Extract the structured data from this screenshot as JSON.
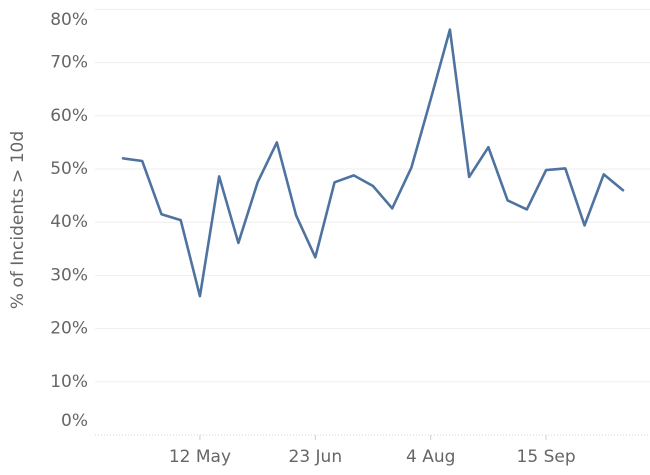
{
  "chart_data": {
    "type": "line",
    "ylabel": "% of Incidents > 10d",
    "categories": [
      null,
      null,
      null,
      null,
      "12 May",
      null,
      null,
      null,
      null,
      null,
      "23 Jun",
      null,
      null,
      null,
      null,
      null,
      "4 Aug",
      null,
      null,
      null,
      null,
      null,
      "15 Sep",
      null,
      null,
      null,
      null
    ],
    "series": [
      {
        "name": null,
        "color": "#4e73a0",
        "values": [
          52.0,
          51.5,
          41.5,
          40.4,
          26.1,
          48.6,
          36.1,
          47.5,
          55.0,
          41.3,
          33.4,
          47.5,
          48.8,
          46.8,
          42.6,
          50.3,
          63.1,
          76.2,
          48.5,
          54.1,
          44.1,
          42.4,
          49.8,
          50.1,
          39.4,
          49.0,
          46.0
        ]
      }
    ],
    "ylim": [
      0,
      80
    ],
    "yticks": [
      {
        "value": 0,
        "label": "0%"
      },
      {
        "value": 10,
        "label": "10%"
      },
      {
        "value": 20,
        "label": "20%"
      },
      {
        "value": 30,
        "label": "30%"
      },
      {
        "value": 40,
        "label": "40%"
      },
      {
        "value": 50,
        "label": "50%"
      },
      {
        "value": 60,
        "label": "60%"
      },
      {
        "value": 70,
        "label": "70%"
      },
      {
        "value": 80,
        "label": "80%"
      }
    ],
    "grid": true
  }
}
